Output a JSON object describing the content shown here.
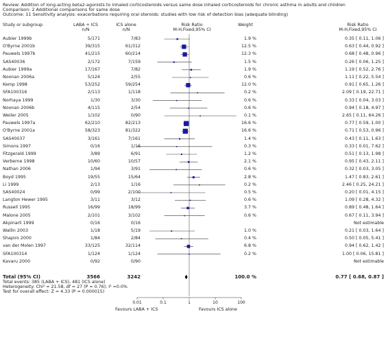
{
  "header": {
    "review": "Review:  Addition of long-acting beta2-agonists to inhaled corticosteroids versus same dose inhaled corticosteroids for chronic asthma in adults and children",
    "comparison": "Comparison:  2 Additional comparisons for same dose",
    "outcome": "Outcome:  11 Sensitivity analysis: exacerbations requiring oral steroids: studies with low risk of detection bias (adequate blinding)"
  },
  "columns": {
    "study": "Study or subgroup",
    "laba": "LABA + ICS",
    "laba_n": "n/N",
    "ics": "ICS alone",
    "ics_n": "n/N",
    "rr_plot": "Risk Ratio",
    "rr_plot_method": "M-H,Fixed,95% CI",
    "weight": "Weight",
    "rr": "Risk Ratio",
    "rr_method": "M-H,Fixed,95% CI"
  },
  "chart_data": {
    "type": "forest",
    "scale": "log",
    "xlim": [
      0.01,
      100
    ],
    "ticks": [
      "0.01",
      "0.1",
      "1",
      "10",
      "100"
    ],
    "tick_values": [
      0.01,
      0.1,
      1,
      10,
      100
    ],
    "left_label": "Favours LABA + ICS",
    "right_label": "Favours ICS alone",
    "marker_color": "#1a1aa0",
    "studies": [
      {
        "name": "Aubier 1999b",
        "laba": "5/171",
        "ics": "7/83",
        "weight": "1.9 %",
        "ci_text": "0.35 [ 0.11, 1.06 ]",
        "rr": 0.35,
        "lo": 0.11,
        "hi": 1.06,
        "w": 1.9
      },
      {
        "name": "O'Byrne 2001b",
        "laba": "39/315",
        "ics": "61/312",
        "weight": "12.5 %",
        "ci_text": "0.63 [ 0.44, 0.92 ]",
        "rr": 0.63,
        "lo": 0.44,
        "hi": 0.92,
        "w": 12.5
      },
      {
        "name": "Pauwels 1997b",
        "laba": "41/215",
        "ics": "60/214",
        "weight": "12.3 %",
        "ci_text": "0.68 [ 0.48, 0.96 ]",
        "rr": 0.68,
        "lo": 0.48,
        "hi": 0.96,
        "w": 12.3
      },
      {
        "name": "SAS40036",
        "laba": "2/172",
        "ics": "7/159",
        "weight": "1.5 %",
        "ci_text": "0.26 [ 0.06, 1.25 ]",
        "rr": 0.26,
        "lo": 0.06,
        "hi": 1.25,
        "w": 1.5
      },
      {
        "name": "Aubier 1999a",
        "laba": "17/167",
        "ics": "7/82",
        "weight": "1.9 %",
        "ci_text": "1.19 [ 0.52, 2.76 ]",
        "rr": 1.19,
        "lo": 0.52,
        "hi": 2.76,
        "w": 1.9
      },
      {
        "name": "Noonan 2006a",
        "laba": "5/124",
        "ics": "2/55",
        "weight": "0.6 %",
        "ci_text": "1.11 [ 0.22, 5.54 ]",
        "rr": 1.11,
        "lo": 0.22,
        "hi": 5.54,
        "w": 0.6
      },
      {
        "name": "Kemp 1998",
        "laba": "53/252",
        "ics": "59/254",
        "weight": "12.0 %",
        "ci_text": "0.91 [ 0.65, 1.26 ]",
        "rr": 0.91,
        "lo": 0.65,
        "hi": 1.26,
        "w": 12.0
      },
      {
        "name": "SFA100316",
        "laba": "2/113",
        "ics": "1/118",
        "weight": "0.2 %",
        "ci_text": "2.09 [ 0.19, 22.71 ]",
        "rr": 2.09,
        "lo": 0.19,
        "hi": 22.71,
        "w": 0.2
      },
      {
        "name": "Norhaya 1999",
        "laba": "1/30",
        "ics": "3/30",
        "weight": "0.6 %",
        "ci_text": "0.33 [ 0.04, 3.03 ]",
        "rr": 0.33,
        "lo": 0.04,
        "hi": 3.03,
        "w": 0.6
      },
      {
        "name": "Noonan 2006b",
        "laba": "4/115",
        "ics": "2/54",
        "weight": "0.6 %",
        "ci_text": "0.94 [ 0.18, 4.97 ]",
        "rr": 0.94,
        "lo": 0.18,
        "hi": 4.97,
        "w": 0.6
      },
      {
        "name": "Weiler 2005",
        "laba": "1/102",
        "ics": "0/90",
        "weight": "0.1 %",
        "ci_text": "2.65 [ 0.11, 64.26 ]",
        "rr": 2.65,
        "lo": 0.11,
        "hi": 64.26,
        "w": 0.1
      },
      {
        "name": "Pauwels 1997a",
        "laba": "62/210",
        "ics": "82/213",
        "weight": "16.6 %",
        "ci_text": "0.77 [ 0.59, 1.00 ]",
        "rr": 0.77,
        "lo": 0.59,
        "hi": 1.0,
        "w": 16.6
      },
      {
        "name": "O'Byrne 2001a",
        "laba": "58/323",
        "ics": "81/322",
        "weight": "16.6 %",
        "ci_text": "0.71 [ 0.53, 0.96 ]",
        "rr": 0.71,
        "lo": 0.53,
        "hi": 0.96,
        "w": 16.6
      },
      {
        "name": "SAS40037",
        "laba": "3/161",
        "ics": "7/161",
        "weight": "1.4 %",
        "ci_text": "0.43 [ 0.11, 1.63 ]",
        "rr": 0.43,
        "lo": 0.11,
        "hi": 1.63,
        "w": 1.4
      },
      {
        "name": "Simons 1997",
        "laba": "0/16",
        "ics": "1/16",
        "weight": "0.3 %",
        "ci_text": "0.33 [ 0.01, 7.62 ]",
        "rr": 0.33,
        "lo": 0.01,
        "hi": 7.62,
        "w": 0.3
      },
      {
        "name": "Fitzgerald 1999",
        "laba": "3/89",
        "ics": "6/91",
        "weight": "1.2 %",
        "ci_text": "0.51 [ 0.13, 1.98 ]",
        "rr": 0.51,
        "lo": 0.13,
        "hi": 1.98,
        "w": 1.2
      },
      {
        "name": "Verberne 1998",
        "laba": "10/60",
        "ics": "10/57",
        "weight": "2.1 %",
        "ci_text": "0.95 [ 0.43, 2.11 ]",
        "rr": 0.95,
        "lo": 0.43,
        "hi": 2.11,
        "w": 2.1
      },
      {
        "name": "Nathan 2006",
        "laba": "1/94",
        "ics": "3/91",
        "weight": "0.6 %",
        "ci_text": "0.32 [ 0.03, 3.05 ]",
        "rr": 0.32,
        "lo": 0.03,
        "hi": 3.05,
        "w": 0.6
      },
      {
        "name": "Boyd 1995",
        "laba": "19/55",
        "ics": "15/64",
        "weight": "2.8 %",
        "ci_text": "1.47 [ 0.83, 2.61 ]",
        "rr": 1.47,
        "lo": 0.83,
        "hi": 2.61,
        "w": 2.8
      },
      {
        "name": "Li 1999",
        "laba": "2/13",
        "ics": "1/16",
        "weight": "0.2 %",
        "ci_text": "2.46 [ 0.25, 24.21 ]",
        "rr": 2.46,
        "lo": 0.25,
        "hi": 24.21,
        "w": 0.2
      },
      {
        "name": "SAS40024",
        "laba": "0/99",
        "ics": "2/100",
        "weight": "0.5 %",
        "ci_text": "0.20 [ 0.01, 4.15 ]",
        "rr": 0.2,
        "lo": 0.01,
        "hi": 4.15,
        "w": 0.5
      },
      {
        "name": "Langton Hewer 1995",
        "laba": "3/11",
        "ics": "3/12",
        "weight": "0.6 %",
        "ci_text": "1.09 [ 0.28, 4.32 ]",
        "rr": 1.09,
        "lo": 0.28,
        "hi": 4.32,
        "w": 0.6
      },
      {
        "name": "Russell 1995",
        "laba": "16/99",
        "ics": "18/99",
        "weight": "3.7 %",
        "ci_text": "0.89 [ 0.48, 1.64 ]",
        "rr": 0.89,
        "lo": 0.48,
        "hi": 1.64,
        "w": 3.7
      },
      {
        "name": "Malone 2005",
        "laba": "2/101",
        "ics": "3/102",
        "weight": "0.6 %",
        "ci_text": "0.67 [ 0.11, 3.94 ]",
        "rr": 0.67,
        "lo": 0.11,
        "hi": 3.94,
        "w": 0.6
      },
      {
        "name": "Akpinarli 1999",
        "laba": "0/16",
        "ics": "0/16",
        "weight": "",
        "ci_text": "Not estimable",
        "rr": null,
        "lo": null,
        "hi": null,
        "w": 0
      },
      {
        "name": "Wallin 2003",
        "laba": "1/18",
        "ics": "5/19",
        "weight": "1.0 %",
        "ci_text": "0.21 [ 0.03, 1.64 ]",
        "rr": 0.21,
        "lo": 0.03,
        "hi": 1.64,
        "w": 1.0
      },
      {
        "name": "Shapiro 2000",
        "laba": "1/84",
        "ics": "2/84",
        "weight": "0.4 %",
        "ci_text": "0.50 [ 0.05, 5.41 ]",
        "rr": 0.5,
        "lo": 0.05,
        "hi": 5.41,
        "w": 0.4
      },
      {
        "name": "van der Molen 1997",
        "laba": "33/125",
        "ics": "32/114",
        "weight": "6.8 %",
        "ci_text": "0.94 [ 0.62, 1.42 ]",
        "rr": 0.94,
        "lo": 0.62,
        "hi": 1.42,
        "w": 6.8
      },
      {
        "name": "SFA100314",
        "laba": "1/124",
        "ics": "1/124",
        "weight": "0.2 %",
        "ci_text": "1.00 [ 0.06, 15.81 ]",
        "rr": 1.0,
        "lo": 0.06,
        "hi": 15.81,
        "w": 0.2
      },
      {
        "name": "Kavaru 2000",
        "laba": "0/92",
        "ics": "0/90",
        "weight": "",
        "ci_text": "Not estimable",
        "rr": null,
        "lo": null,
        "hi": null,
        "w": 0
      }
    ],
    "total": {
      "name": "Total (95% CI)",
      "laba_n": "3566",
      "ics_n": "3242",
      "weight": "100.0 %",
      "ci_text": "0.77 [ 0.68, 0.87 ]",
      "rr": 0.77,
      "lo": 0.68,
      "hi": 0.87
    }
  },
  "footer": {
    "events": "Total events: 385 (LABA + ICS), 481 (ICS alone)",
    "heterogeneity": "Heterogeneity: Chi² = 21.58, df = 27 (P = 0.76); I² =0.0%",
    "overall": "Test for overall effect: Z = 4.33 (P = 0.000015)"
  }
}
